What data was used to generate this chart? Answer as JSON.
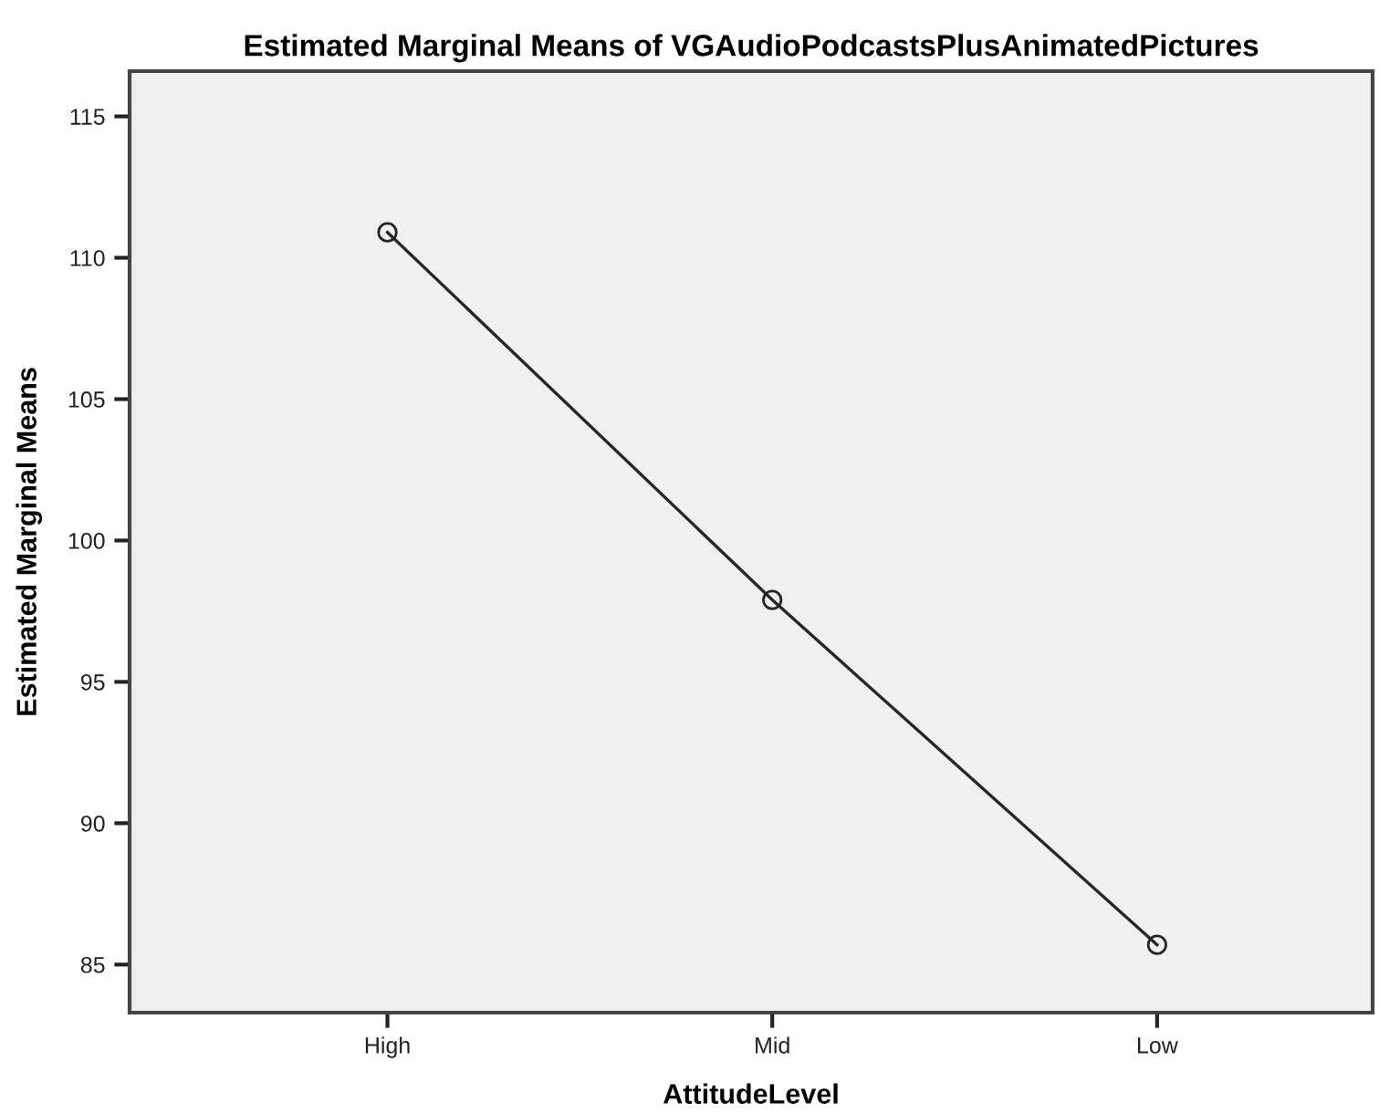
{
  "chart_data": {
    "type": "line",
    "title": "Estimated Marginal Means of VGAudioPodcastsPlusAnimatedPictures",
    "xlabel": "AttitudeLevel",
    "ylabel": "Estimated Marginal Means",
    "categories": [
      "High",
      "Mid",
      "Low"
    ],
    "series": [
      {
        "color": "#262626",
        "values": [
          110.9,
          97.9,
          85.7
        ]
      }
    ],
    "ylim": [
      83.3,
      116.6
    ],
    "yticks": [
      85,
      90,
      95,
      100,
      105,
      110,
      115
    ],
    "grid": false,
    "legend": false,
    "marker": "circle",
    "line_style": "solid"
  }
}
